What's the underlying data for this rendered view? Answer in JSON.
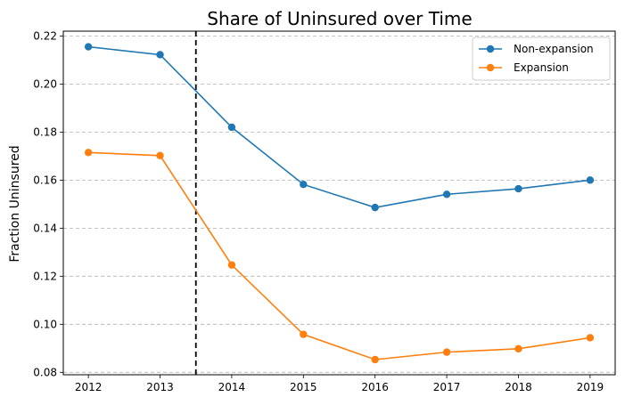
{
  "chart_data": {
    "type": "line",
    "title": "Share of Uninsured over Time",
    "xlabel": "",
    "ylabel": "Fraction Uninsured",
    "x": [
      2012,
      2013,
      2014,
      2015,
      2016,
      2017,
      2018,
      2019
    ],
    "xlim": [
      2011.65,
      2019.35
    ],
    "ylim": [
      0.079,
      0.222
    ],
    "yticks": [
      "0.08",
      "0.10",
      "0.12",
      "0.14",
      "0.16",
      "0.18",
      "0.20",
      "0.22"
    ],
    "ytick_values": [
      0.08,
      0.1,
      0.12,
      0.14,
      0.16,
      0.18,
      0.2,
      0.22
    ],
    "xticks": [
      "2012",
      "2013",
      "2014",
      "2015",
      "2016",
      "2017",
      "2018",
      "2019"
    ],
    "grid": "horizontal dashed",
    "legend_position": "top-right",
    "reference_line": {
      "x": 2013.5,
      "style": "dashed",
      "color": "#000000"
    },
    "series": [
      {
        "name": "Non-expansion",
        "color": "#1f77b4",
        "values": [
          0.2155,
          0.2122,
          0.182,
          0.1582,
          0.1486,
          0.1541,
          0.1564,
          0.16
        ]
      },
      {
        "name": "Expansion",
        "color": "#ff7f0e",
        "values": [
          0.1715,
          0.1702,
          0.1247,
          0.0958,
          0.0853,
          0.0884,
          0.0898,
          0.0944
        ]
      }
    ]
  }
}
